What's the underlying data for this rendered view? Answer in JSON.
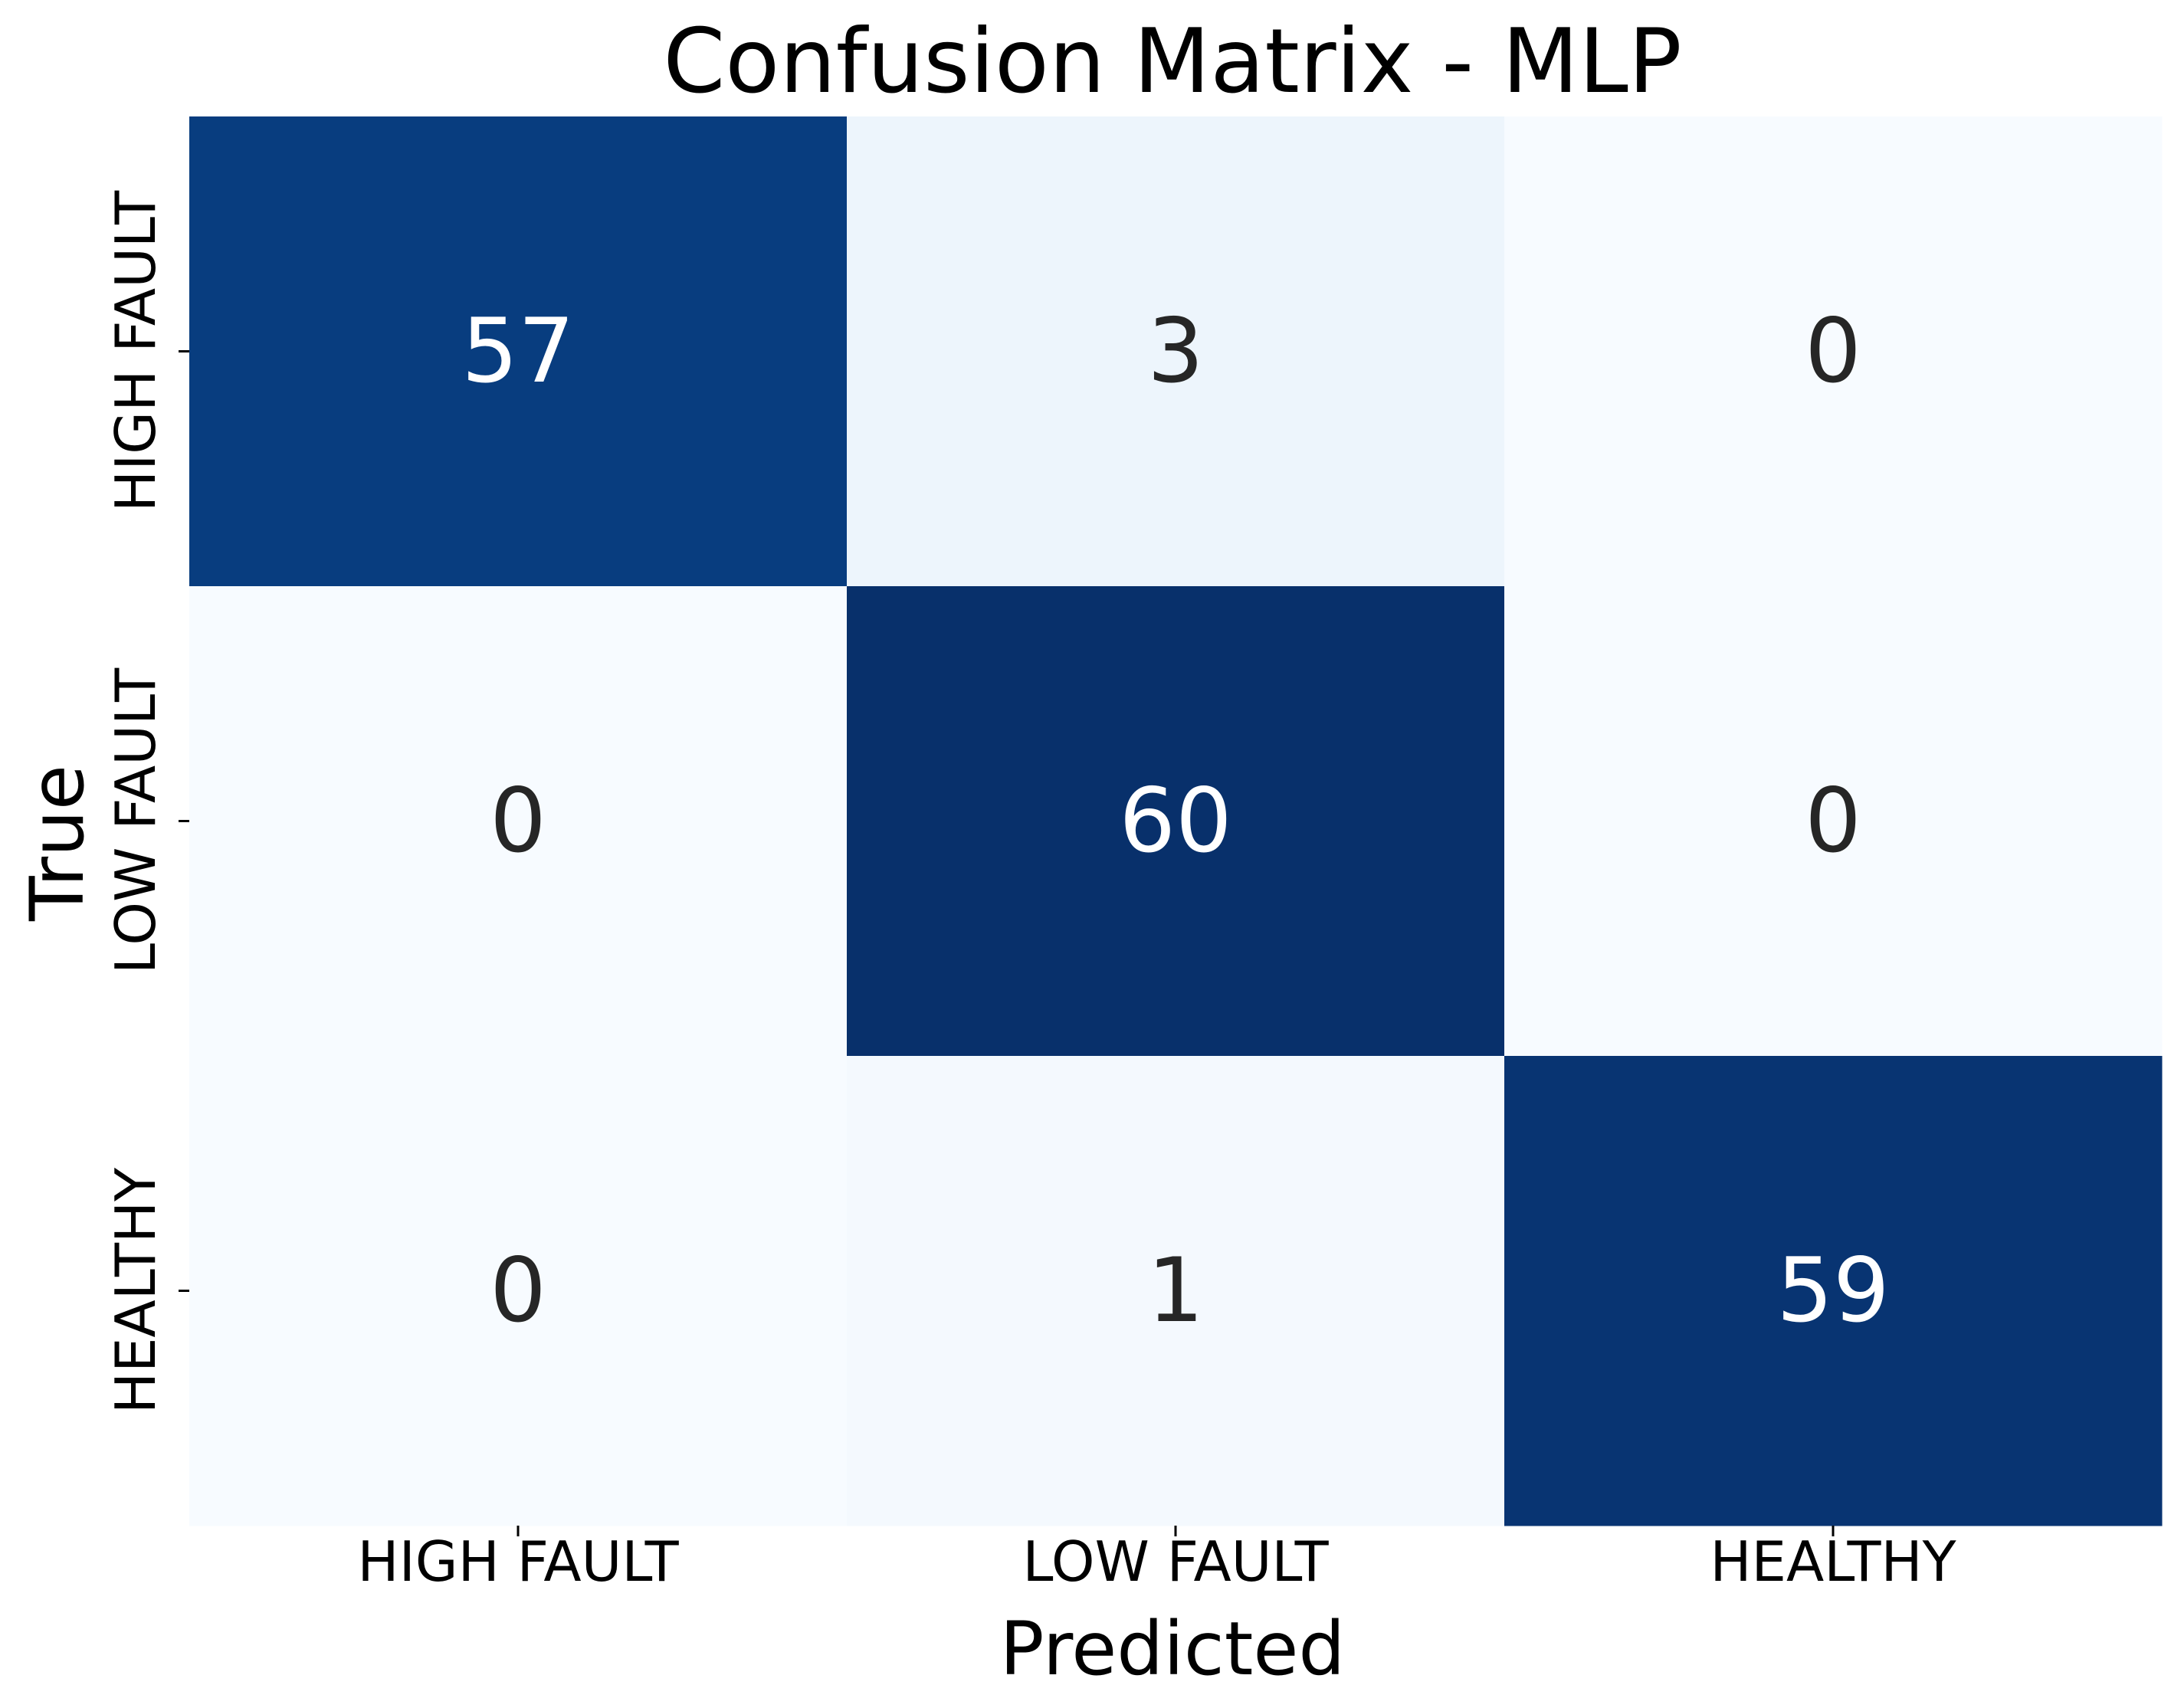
{
  "chart_data": {
    "type": "heatmap",
    "title": "Confusion Matrix - MLP",
    "xlabel": "Predicted",
    "ylabel": "True",
    "x_categories": [
      "HIGH FAULT",
      "LOW FAULT",
      "HEALTHY"
    ],
    "y_categories": [
      "HIGH FAULT",
      "LOW FAULT",
      "HEALTHY"
    ],
    "matrix": [
      [
        57,
        3,
        0
      ],
      [
        0,
        60,
        0
      ],
      [
        0,
        1,
        59
      ]
    ],
    "colormap": "Blues",
    "colorbar": false,
    "annotations": true
  }
}
